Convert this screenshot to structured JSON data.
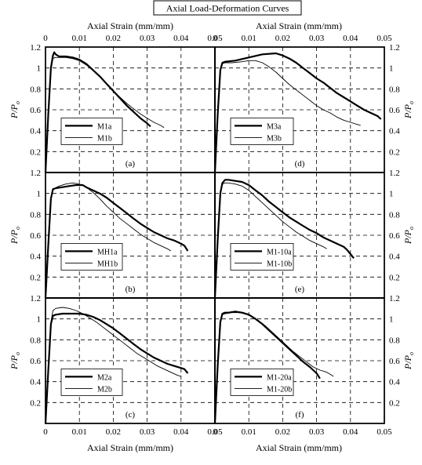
{
  "figure": {
    "title": "Axial Load-Deformation Curves",
    "x_axis_label": "Axial Strain (mm/mm)",
    "y_axis_label": "P/P",
    "y_axis_label_subscript": "o"
  },
  "chart_data": [
    {
      "type": "line",
      "panel": "(a)",
      "position": "left-top",
      "xlim": [
        0,
        0.05
      ],
      "ylim": [
        0,
        1.2
      ],
      "xticks": [
        "0",
        "0.01",
        "0.02",
        "0.03",
        "0.04",
        "0.05"
      ],
      "yticks": [
        "0.2",
        "0.4",
        "0.6",
        "0.8",
        "1",
        "1.2"
      ],
      "grid": true,
      "legend_position": "middle-left",
      "series": [
        {
          "name": "M1a",
          "style": "thick",
          "x": [
            0,
            0.0008,
            0.0016,
            0.0022,
            0.0026,
            0.003,
            0.004,
            0.006,
            0.008,
            0.009,
            0.01,
            0.012,
            0.014,
            0.016,
            0.018,
            0.02,
            0.022,
            0.024,
            0.026,
            0.028,
            0.03,
            0.031
          ],
          "y": [
            0,
            0.55,
            1.0,
            1.12,
            1.15,
            1.13,
            1.11,
            1.11,
            1.1,
            1.09,
            1.08,
            1.04,
            0.98,
            0.92,
            0.85,
            0.78,
            0.71,
            0.64,
            0.58,
            0.52,
            0.47,
            0.44
          ]
        },
        {
          "name": "M1b",
          "style": "thin",
          "x": [
            0,
            0.0008,
            0.0016,
            0.0022,
            0.0028,
            0.004,
            0.006,
            0.008,
            0.01,
            0.012,
            0.014,
            0.016,
            0.018,
            0.02,
            0.022,
            0.024,
            0.026,
            0.028,
            0.03,
            0.032,
            0.034,
            0.035
          ],
          "y": [
            0,
            0.55,
            0.98,
            1.09,
            1.1,
            1.1,
            1.1,
            1.09,
            1.07,
            1.03,
            0.98,
            0.92,
            0.85,
            0.78,
            0.72,
            0.66,
            0.61,
            0.56,
            0.52,
            0.48,
            0.45,
            0.43
          ]
        }
      ]
    },
    {
      "type": "line",
      "panel": "(b)",
      "position": "left-middle",
      "xlim": [
        0,
        0.05
      ],
      "ylim": [
        0,
        1.2
      ],
      "xticks": [
        "0",
        "0.01",
        "0.02",
        "0.03",
        "0.04",
        "0.05"
      ],
      "yticks": [
        "0.2",
        "0.4",
        "0.6",
        "0.8",
        "1",
        "1.2"
      ],
      "grid": true,
      "legend_position": "middle-right",
      "series": [
        {
          "name": "MH1a",
          "style": "thick",
          "x": [
            0,
            0.0008,
            0.0016,
            0.0022,
            0.003,
            0.005,
            0.007,
            0.009,
            0.011,
            0.012,
            0.014,
            0.016,
            0.018,
            0.02,
            0.022,
            0.024,
            0.026,
            0.028,
            0.03,
            0.032,
            0.034,
            0.036,
            0.038,
            0.04,
            0.041,
            0.042
          ],
          "y": [
            0,
            0.5,
            0.95,
            1.04,
            1.05,
            1.06,
            1.07,
            1.08,
            1.08,
            1.06,
            1.03,
            1.0,
            0.96,
            0.91,
            0.86,
            0.81,
            0.76,
            0.71,
            0.67,
            0.63,
            0.6,
            0.57,
            0.55,
            0.52,
            0.5,
            0.45
          ]
        },
        {
          "name": "MH1b",
          "style": "thin",
          "x": [
            0,
            0.0008,
            0.0016,
            0.0022,
            0.004,
            0.006,
            0.008,
            0.01,
            0.012,
            0.014,
            0.016,
            0.018,
            0.02,
            0.022,
            0.024,
            0.026,
            0.028,
            0.03,
            0.032,
            0.034,
            0.036,
            0.037
          ],
          "y": [
            0,
            0.5,
            0.95,
            1.04,
            1.07,
            1.09,
            1.1,
            1.09,
            1.06,
            1.01,
            0.95,
            0.88,
            0.82,
            0.76,
            0.71,
            0.66,
            0.61,
            0.57,
            0.53,
            0.5,
            0.47,
            0.45
          ]
        }
      ]
    },
    {
      "type": "line",
      "panel": "(c)",
      "position": "left-bottom",
      "xlim": [
        0,
        0.05
      ],
      "ylim": [
        0,
        1.2
      ],
      "xticks": [
        "0",
        "0.01",
        "0.02",
        "0.03",
        "0.04",
        "0.05"
      ],
      "yticks": [
        "0.2",
        "0.4",
        "0.6",
        "0.8",
        "1",
        "1.2"
      ],
      "grid": true,
      "legend_position": "middle-right",
      "series": [
        {
          "name": "M2a",
          "style": "thick",
          "x": [
            0,
            0.0008,
            0.0016,
            0.0022,
            0.003,
            0.005,
            0.008,
            0.01,
            0.012,
            0.014,
            0.016,
            0.018,
            0.02,
            0.022,
            0.024,
            0.026,
            0.028,
            0.03,
            0.032,
            0.034,
            0.036,
            0.038,
            0.04,
            0.041,
            0.042
          ],
          "y": [
            0,
            0.5,
            0.95,
            1.03,
            1.04,
            1.05,
            1.05,
            1.05,
            1.04,
            1.02,
            0.99,
            0.95,
            0.91,
            0.86,
            0.81,
            0.76,
            0.71,
            0.67,
            0.63,
            0.6,
            0.57,
            0.55,
            0.53,
            0.52,
            0.48
          ]
        },
        {
          "name": "M2b",
          "style": "thin",
          "x": [
            0,
            0.0008,
            0.0016,
            0.0022,
            0.003,
            0.005,
            0.007,
            0.009,
            0.011,
            0.013,
            0.015,
            0.017,
            0.019,
            0.021,
            0.023,
            0.025,
            0.027,
            0.029,
            0.031,
            0.033,
            0.035,
            0.037,
            0.039,
            0.04
          ],
          "y": [
            0,
            0.5,
            0.97,
            1.08,
            1.1,
            1.11,
            1.1,
            1.08,
            1.05,
            1.01,
            0.97,
            0.92,
            0.87,
            0.82,
            0.77,
            0.72,
            0.67,
            0.63,
            0.59,
            0.55,
            0.52,
            0.49,
            0.46,
            0.45
          ]
        }
      ]
    },
    {
      "type": "line",
      "panel": "(d)",
      "position": "right-top",
      "xlim": [
        0,
        0.05
      ],
      "ylim": [
        0,
        1.2
      ],
      "xticks": [
        "0",
        "0.01",
        "0.02",
        "0.03",
        "0.04",
        "0.05"
      ],
      "yticks": [
        "0.2",
        "0.4",
        "0.6",
        "0.8",
        "1",
        "1.2"
      ],
      "grid": true,
      "legend_position": "middle-left",
      "series": [
        {
          "name": "M3a",
          "style": "thick",
          "x": [
            0,
            0.0008,
            0.0016,
            0.0022,
            0.003,
            0.006,
            0.01,
            0.014,
            0.018,
            0.02,
            0.022,
            0.024,
            0.026,
            0.028,
            0.03,
            0.032,
            0.034,
            0.036,
            0.038,
            0.04,
            0.042,
            0.044,
            0.046,
            0.048,
            0.049
          ],
          "y": [
            0,
            0.55,
            0.98,
            1.05,
            1.06,
            1.07,
            1.1,
            1.13,
            1.14,
            1.12,
            1.09,
            1.05,
            1.0,
            0.95,
            0.9,
            0.86,
            0.81,
            0.76,
            0.72,
            0.68,
            0.64,
            0.6,
            0.57,
            0.54,
            0.51
          ]
        },
        {
          "name": "M3b",
          "style": "thin",
          "x": [
            0,
            0.0008,
            0.0016,
            0.0022,
            0.003,
            0.005,
            0.008,
            0.01,
            0.012,
            0.014,
            0.016,
            0.018,
            0.02,
            0.022,
            0.024,
            0.026,
            0.028,
            0.03,
            0.032,
            0.034,
            0.036,
            0.038,
            0.04,
            0.042,
            0.043
          ],
          "y": [
            0,
            0.55,
            0.97,
            1.04,
            1.05,
            1.05,
            1.06,
            1.07,
            1.07,
            1.05,
            1.01,
            0.96,
            0.9,
            0.84,
            0.79,
            0.74,
            0.69,
            0.64,
            0.6,
            0.57,
            0.53,
            0.5,
            0.48,
            0.46,
            0.45
          ]
        }
      ]
    },
    {
      "type": "line",
      "panel": "(e)",
      "position": "right-middle",
      "xlim": [
        0,
        0.05
      ],
      "ylim": [
        0,
        1.2
      ],
      "xticks": [
        "0",
        "0.01",
        "0.02",
        "0.03",
        "0.04",
        "0.05"
      ],
      "yticks": [
        "0.2",
        "0.4",
        "0.6",
        "0.8",
        "1",
        "1.2"
      ],
      "grid": true,
      "legend_position": "middle-left",
      "series": [
        {
          "name": "M1-10a",
          "style": "thick",
          "x": [
            0,
            0.0008,
            0.0016,
            0.0022,
            0.003,
            0.004,
            0.006,
            0.008,
            0.01,
            0.012,
            0.014,
            0.016,
            0.018,
            0.02,
            0.022,
            0.024,
            0.026,
            0.028,
            0.03,
            0.032,
            0.034,
            0.036,
            0.038,
            0.039,
            0.04,
            0.041
          ],
          "y": [
            0,
            0.55,
            1.0,
            1.1,
            1.13,
            1.13,
            1.12,
            1.11,
            1.08,
            1.03,
            0.98,
            0.92,
            0.87,
            0.82,
            0.77,
            0.73,
            0.69,
            0.65,
            0.62,
            0.58,
            0.55,
            0.52,
            0.49,
            0.46,
            0.42,
            0.38
          ]
        },
        {
          "name": "M1-10b",
          "style": "thin",
          "x": [
            0,
            0.0008,
            0.0016,
            0.0022,
            0.003,
            0.004,
            0.006,
            0.008,
            0.01,
            0.012,
            0.014,
            0.016,
            0.018,
            0.02,
            0.022,
            0.024,
            0.026,
            0.028,
            0.03,
            0.032,
            0.033
          ],
          "y": [
            0,
            0.55,
            0.99,
            1.09,
            1.1,
            1.1,
            1.09,
            1.07,
            1.03,
            0.97,
            0.91,
            0.85,
            0.79,
            0.73,
            0.68,
            0.63,
            0.59,
            0.55,
            0.52,
            0.49,
            0.47
          ]
        }
      ]
    },
    {
      "type": "line",
      "panel": "(f)",
      "position": "right-bottom",
      "xlim": [
        0,
        0.05
      ],
      "ylim": [
        0,
        1.2
      ],
      "xticks": [
        "0",
        "0.01",
        "0.02",
        "0.03",
        "0.04",
        "0.05"
      ],
      "yticks": [
        "0.2",
        "0.4",
        "0.6",
        "0.8",
        "1",
        "1.2"
      ],
      "grid": true,
      "legend_position": "middle-right",
      "series": [
        {
          "name": "M1-20a",
          "style": "thick",
          "x": [
            0,
            0.0008,
            0.0016,
            0.0022,
            0.003,
            0.004,
            0.006,
            0.008,
            0.01,
            0.012,
            0.014,
            0.016,
            0.018,
            0.02,
            0.022,
            0.024,
            0.026,
            0.028,
            0.03,
            0.031
          ],
          "y": [
            0,
            0.55,
            0.97,
            1.05,
            1.06,
            1.06,
            1.07,
            1.06,
            1.04,
            1.0,
            0.95,
            0.89,
            0.83,
            0.77,
            0.71,
            0.65,
            0.59,
            0.54,
            0.48,
            0.43
          ]
        },
        {
          "name": "M1-20b",
          "style": "thin",
          "x": [
            0,
            0.0008,
            0.0016,
            0.0022,
            0.003,
            0.005,
            0.007,
            0.009,
            0.011,
            0.013,
            0.015,
            0.017,
            0.019,
            0.021,
            0.023,
            0.025,
            0.027,
            0.029,
            0.031,
            0.033,
            0.034,
            0.035
          ],
          "y": [
            0,
            0.55,
            0.97,
            1.04,
            1.05,
            1.06,
            1.06,
            1.05,
            1.02,
            0.98,
            0.93,
            0.87,
            0.81,
            0.75,
            0.69,
            0.64,
            0.59,
            0.54,
            0.51,
            0.49,
            0.47,
            0.45
          ]
        }
      ]
    }
  ]
}
